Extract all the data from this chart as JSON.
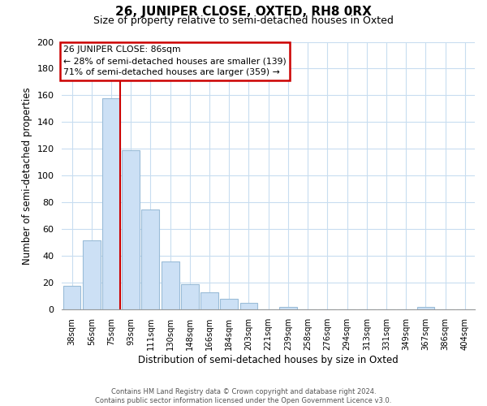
{
  "title": "26, JUNIPER CLOSE, OXTED, RH8 0RX",
  "subtitle": "Size of property relative to semi-detached houses in Oxted",
  "xlabel": "Distribution of semi-detached houses by size in Oxted",
  "ylabel": "Number of semi-detached properties",
  "bar_labels": [
    "38sqm",
    "56sqm",
    "75sqm",
    "93sqm",
    "111sqm",
    "130sqm",
    "148sqm",
    "166sqm",
    "184sqm",
    "203sqm",
    "221sqm",
    "239sqm",
    "258sqm",
    "276sqm",
    "294sqm",
    "313sqm",
    "331sqm",
    "349sqm",
    "367sqm",
    "386sqm",
    "404sqm"
  ],
  "bar_values": [
    18,
    52,
    158,
    119,
    75,
    36,
    19,
    13,
    8,
    5,
    0,
    2,
    0,
    0,
    0,
    0,
    0,
    0,
    2,
    0,
    0
  ],
  "bar_color": "#cce0f5",
  "bar_edge_color": "#9abcd8",
  "highlight_line_color": "#cc0000",
  "annotation_box_edge_color": "#cc0000",
  "annotation_line1": "26 JUNIPER CLOSE: 86sqm",
  "annotation_line2": "← 28% of semi-detached houses are smaller (139)",
  "annotation_line3": "71% of semi-detached houses are larger (359) →",
  "ylim": [
    0,
    200
  ],
  "yticks": [
    0,
    20,
    40,
    60,
    80,
    100,
    120,
    140,
    160,
    180,
    200
  ],
  "footer_line1": "Contains HM Land Registry data © Crown copyright and database right 2024.",
  "footer_line2": "Contains public sector information licensed under the Open Government Licence v3.0.",
  "background_color": "#ffffff",
  "grid_color": "#c8ddf0"
}
